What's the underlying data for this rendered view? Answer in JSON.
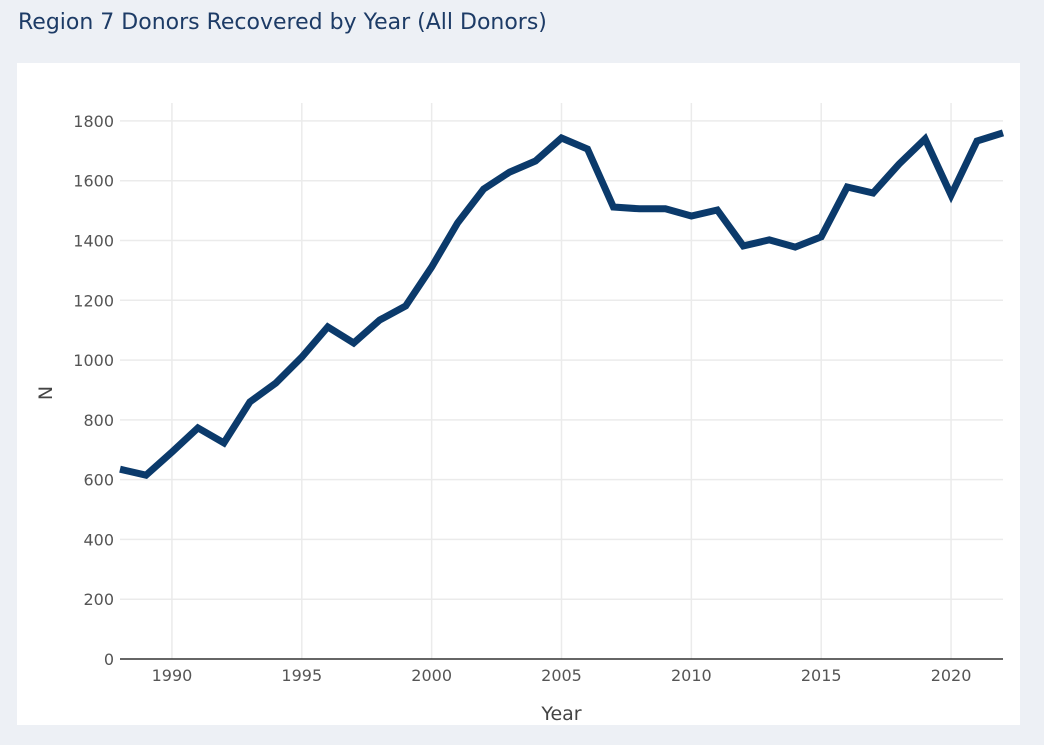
{
  "chart_data": {
    "type": "line",
    "title": "Region 7 Donors Recovered by Year (All Donors)",
    "xlabel": "Year",
    "ylabel": "N",
    "xlim": [
      1988,
      2022
    ],
    "ylim": [
      0,
      1860
    ],
    "grid": true,
    "x_ticks": [
      1990,
      1995,
      2000,
      2005,
      2010,
      2015,
      2020
    ],
    "y_ticks": [
      0,
      200,
      400,
      600,
      800,
      1000,
      1200,
      1400,
      1600,
      1800
    ],
    "line_color": "#0b3a6b",
    "x": [
      1988,
      1989,
      1990,
      1991,
      1992,
      1993,
      1994,
      1995,
      1996,
      1997,
      1998,
      1999,
      2000,
      2001,
      2002,
      2003,
      2004,
      2005,
      2006,
      2007,
      2008,
      2009,
      2010,
      2011,
      2012,
      2013,
      2014,
      2015,
      2016,
      2017,
      2018,
      2019,
      2020,
      2021,
      2022
    ],
    "values": [
      635,
      615,
      692,
      773,
      723,
      860,
      923,
      1010,
      1111,
      1057,
      1134,
      1181,
      1311,
      1459,
      1572,
      1629,
      1666,
      1743,
      1706,
      1512,
      1506,
      1506,
      1482,
      1502,
      1382,
      1402,
      1378,
      1412,
      1579,
      1559,
      1656,
      1740,
      1552,
      1733,
      1760
    ]
  }
}
